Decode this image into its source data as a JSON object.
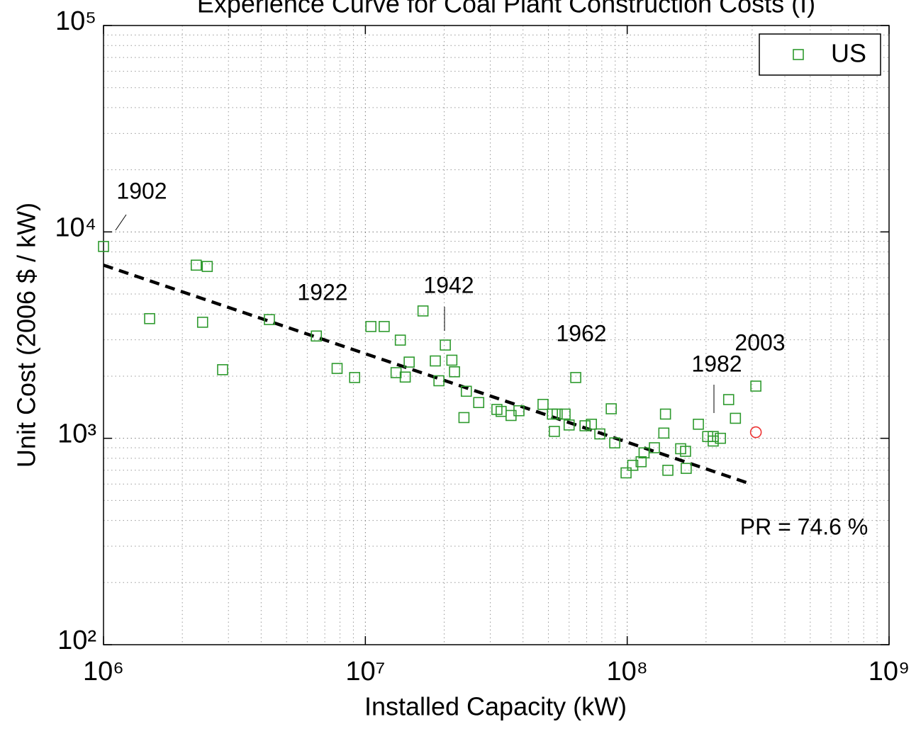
{
  "chart_data": {
    "type": "scatter",
    "title": "Experience Curve for Coal Plant Construction Costs (I)",
    "x_label": "Installed Capacity (kW)",
    "y_label": "Unit Cost (2006 $ / kW)",
    "log_x": true,
    "log_y": true,
    "grid": true,
    "minor_grid": true,
    "legend": "upper right",
    "xlim": [
      1000000,
      1000000000
    ],
    "ylim": [
      100,
      100000
    ],
    "xticks": [
      {
        "value": 1000000,
        "label": "10⁶"
      },
      {
        "value": 10000000,
        "label": "10⁷"
      },
      {
        "value": 100000000,
        "label": "10⁸"
      },
      {
        "value": 1000000000,
        "label": "10⁹"
      }
    ],
    "yticks": [
      {
        "value": 100,
        "label": "10²"
      },
      {
        "value": 1000,
        "label": "10³"
      },
      {
        "value": 10000,
        "label": "10⁴"
      },
      {
        "value": 100000,
        "label": "10⁵"
      }
    ],
    "series": [
      {
        "name": "US",
        "color": "#2e9a2e",
        "marker": "square",
        "x": [
          1000000,
          1500000,
          2260000,
          2490000,
          2390000,
          2850000,
          4300000,
          6500000,
          7800000,
          9100000,
          10500000,
          11800000,
          13600000,
          13100000,
          14200000,
          14700000,
          16600000,
          18500000,
          20200000,
          21400000,
          21900000,
          19100000,
          24300000,
          23800000,
          27100000,
          31800000,
          33000000,
          36000000,
          38600000,
          47700000,
          51800000,
          54000000,
          57900000,
          52700000,
          60000000,
          63600000,
          69000000,
          73000000,
          78600000,
          86900000,
          89600000,
          99000000,
          105000000,
          113000000,
          116000000,
          127000000,
          138000000,
          140000000,
          143000000,
          160000000,
          167000000,
          168000000,
          187000000,
          203000000,
          213000000,
          213000000,
          227000000,
          244000000,
          259000000,
          310000000
        ],
        "y": [
          8500,
          3800,
          6900,
          6800,
          3650,
          2150,
          3760,
          3130,
          2180,
          1970,
          3480,
          3480,
          2990,
          2080,
          1980,
          2340,
          4140,
          2370,
          2830,
          2390,
          2100,
          1900,
          1690,
          1260,
          1490,
          1380,
          1350,
          1290,
          1360,
          1460,
          1310,
          1310,
          1310,
          1080,
          1160,
          1970,
          1150,
          1170,
          1050,
          1390,
          950,
          680,
          740,
          770,
          850,
          900,
          1060,
          1310,
          700,
          890,
          865,
          715,
          1170,
          1020,
          1020,
          970,
          1000,
          1540,
          1250,
          1790
        ]
      }
    ],
    "highlight": {
      "color": "#ee3333",
      "marker": "circle",
      "x": 310000000,
      "y": 1070
    },
    "trend": {
      "color": "#000000",
      "dashed": true,
      "x": [
        1000000,
        297000000
      ],
      "y": [
        6900,
        600
      ]
    },
    "annotations": [
      {
        "text": "1902"
      },
      {
        "text": "1922"
      },
      {
        "text": "1942"
      },
      {
        "text": "1962"
      },
      {
        "text": "1982"
      },
      {
        "text": "2003"
      },
      {
        "text": "PR = 74.6 %"
      }
    ]
  }
}
